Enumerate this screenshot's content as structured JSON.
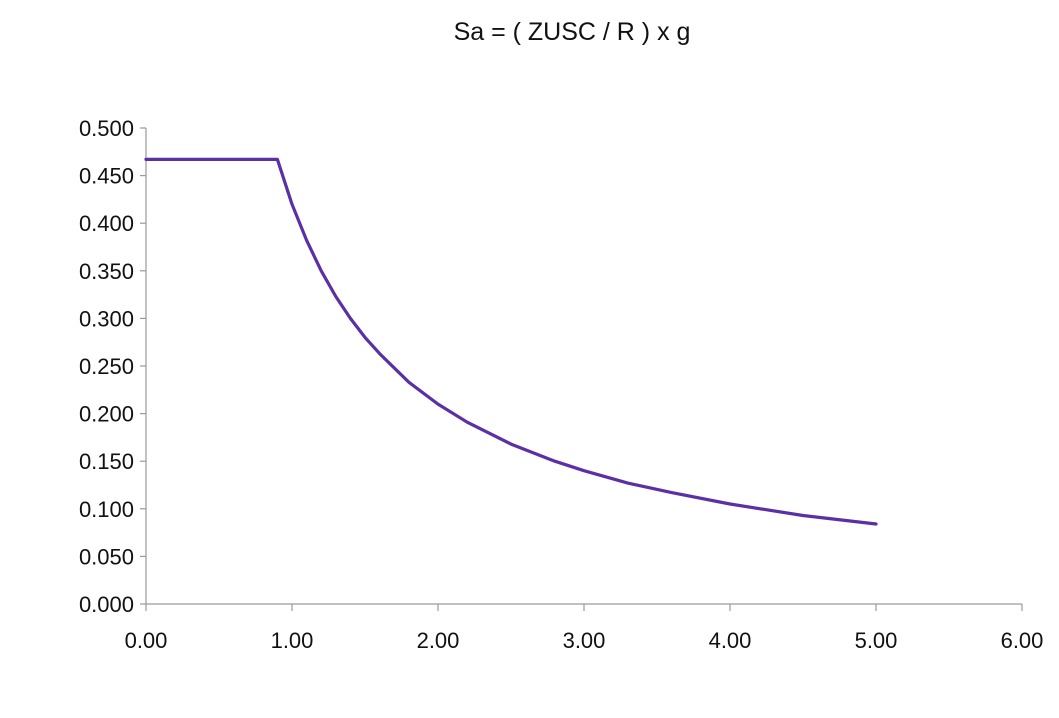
{
  "chart_data": {
    "type": "line",
    "title": "Sa = ( ZUSC / R ) x g",
    "xlabel": "",
    "ylabel": "",
    "xlim": [
      0,
      6
    ],
    "ylim": [
      0,
      0.5
    ],
    "x_ticks": [
      "0.00",
      "1.00",
      "2.00",
      "3.00",
      "4.00",
      "5.00",
      "6.00"
    ],
    "y_ticks": [
      "0.000",
      "0.050",
      "0.100",
      "0.150",
      "0.200",
      "0.250",
      "0.300",
      "0.350",
      "0.400",
      "0.450",
      "0.500"
    ],
    "grid": false,
    "legend": "none",
    "series_color": "#5b2fa6",
    "series": [
      {
        "x": [
          0.0,
          0.2,
          0.4,
          0.6,
          0.8,
          0.9,
          1.0,
          1.1,
          1.2,
          1.3,
          1.4,
          1.5,
          1.6,
          1.8,
          2.0,
          2.2,
          2.5,
          2.8,
          3.0,
          3.3,
          3.6,
          4.0,
          4.5,
          5.0
        ],
        "y": [
          0.467,
          0.467,
          0.467,
          0.467,
          0.467,
          0.467,
          0.42,
          0.382,
          0.35,
          0.323,
          0.3,
          0.28,
          0.263,
          0.233,
          0.21,
          0.191,
          0.168,
          0.15,
          0.14,
          0.127,
          0.117,
          0.105,
          0.093,
          0.084
        ]
      }
    ]
  }
}
